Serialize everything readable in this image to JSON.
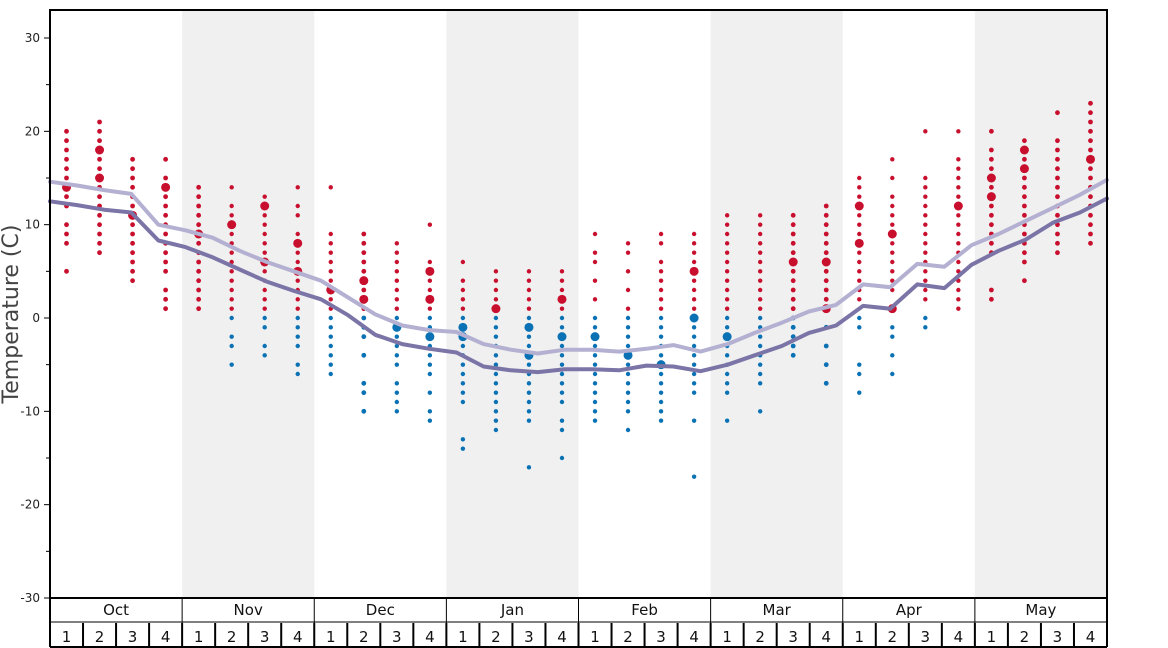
{
  "chart_data": {
    "type": "scatter",
    "ylabel": "Temperature (C)",
    "ylim": [
      -30,
      33
    ],
    "yticks": [
      30,
      20,
      10,
      0,
      -10,
      -20,
      -30
    ],
    "months": [
      "Oct",
      "Nov",
      "Dec",
      "Jan",
      "Feb",
      "Mar",
      "Apr",
      "May"
    ],
    "weeks": [
      "1",
      "2",
      "3",
      "4"
    ],
    "colors": {
      "warm_dots": "#c8102e",
      "cold_dots": "#0a72b4",
      "upper_line": "#b4b0d2",
      "lower_line": "#7b74a6",
      "band_shade": "#f0f0f0",
      "frame": "#000000"
    },
    "series": [
      {
        "name": "",
        "values": [
          14.6,
          14.2,
          13.7,
          13.3,
          10.0,
          9.4,
          8.6,
          7.2,
          6.0,
          5.0,
          4.0,
          2.2,
          0.4,
          -0.8,
          -1.3,
          -1.5,
          -2.8,
          -3.4,
          -3.8,
          -3.4,
          -3.4,
          -3.6,
          -3.3,
          -2.9,
          -3.6,
          -2.8,
          -1.6,
          -0.5,
          0.7,
          1.4,
          3.6,
          3.3,
          5.8,
          5.5,
          7.8,
          9.0,
          10.4,
          11.8,
          13.2,
          14.8
        ]
      },
      {
        "name": "",
        "values": [
          12.5,
          12.1,
          11.6,
          11.3,
          8.3,
          7.6,
          6.5,
          5.2,
          3.9,
          2.9,
          2.0,
          0.3,
          -1.8,
          -2.8,
          -3.3,
          -3.7,
          -5.2,
          -5.6,
          -5.8,
          -5.5,
          -5.5,
          -5.6,
          -5.1,
          -5.2,
          -5.7,
          -5.0,
          -4.0,
          -3.0,
          -1.6,
          -0.8,
          1.3,
          1.0,
          3.6,
          3.2,
          5.7,
          7.2,
          8.4,
          10.2,
          11.3,
          12.8
        ]
      }
    ],
    "dots": [
      {
        "temps": [
          20,
          19,
          18,
          17,
          16,
          15,
          14,
          13,
          12,
          10,
          9,
          8,
          5
        ],
        "big": [
          14
        ]
      },
      {
        "temps": [
          21,
          20,
          19,
          18,
          17,
          16,
          15,
          14,
          13,
          12,
          11,
          10,
          9,
          8,
          7
        ],
        "big": [
          18,
          15
        ]
      },
      {
        "temps": [
          17,
          16,
          15,
          14,
          13,
          12,
          11,
          10,
          9,
          8,
          7,
          6,
          5,
          4
        ],
        "big": [
          11
        ]
      },
      {
        "temps": [
          17,
          15,
          14,
          13,
          12,
          11,
          10,
          9,
          8,
          7,
          6,
          5,
          3,
          2,
          1
        ],
        "big": [
          14
        ]
      },
      {
        "temps": [
          14,
          13,
          12,
          11,
          10,
          9,
          8,
          7,
          6,
          5,
          4,
          3,
          2,
          1
        ],
        "big": [
          9
        ]
      },
      {
        "temps": [
          14,
          12,
          11,
          10,
          9,
          8,
          7,
          6,
          5,
          4,
          3,
          2,
          1,
          0,
          -2,
          -3,
          -5
        ],
        "big": [
          10
        ]
      },
      {
        "temps": [
          13,
          12,
          11,
          10,
          9,
          8,
          7,
          6,
          5,
          4,
          3,
          2,
          1,
          0,
          -1,
          -3,
          -4
        ],
        "big": [
          12,
          6
        ]
      },
      {
        "temps": [
          14,
          12,
          11,
          9,
          8,
          7,
          6,
          5,
          4,
          3,
          2,
          1,
          0,
          -1,
          -2,
          -3,
          -5,
          -6
        ],
        "big": [
          8,
          5
        ]
      },
      {
        "temps": [
          14,
          9,
          8,
          7,
          6,
          5,
          4,
          3,
          2,
          1,
          0,
          -1,
          -2,
          -3,
          -4,
          -5,
          -6
        ],
        "big": [
          3
        ]
      },
      {
        "temps": [
          9,
          8,
          7,
          6,
          5,
          4,
          3,
          2,
          1,
          0,
          -1,
          -2,
          -4,
          -7,
          -8,
          -10
        ],
        "big": [
          4,
          2
        ]
      },
      {
        "temps": [
          8,
          7,
          6,
          5,
          4,
          3,
          2,
          1,
          0,
          -1,
          -2,
          -3,
          -4,
          -5,
          -7,
          -8,
          -9,
          -10
        ],
        "big": [
          -1
        ]
      },
      {
        "temps": [
          10,
          6,
          5,
          4,
          3,
          2,
          1,
          0,
          -1,
          -2,
          -3,
          -4,
          -5,
          -6,
          -8,
          -10,
          -11
        ],
        "big": [
          5,
          2,
          -2
        ]
      },
      {
        "temps": [
          6,
          4,
          3,
          2,
          1,
          0,
          -1,
          -2,
          -3,
          -4,
          -5,
          -6,
          -7,
          -8,
          -9,
          -13,
          -14
        ],
        "big": [
          -1,
          -2
        ]
      },
      {
        "temps": [
          5,
          4,
          3,
          2,
          1,
          0,
          -1,
          -2,
          -3,
          -4,
          -5,
          -6,
          -7,
          -8,
          -9,
          -10,
          -11,
          -12
        ],
        "big": [
          1
        ]
      },
      {
        "temps": [
          5,
          4,
          3,
          2,
          1,
          0,
          -1,
          -2,
          -3,
          -4,
          -5,
          -6,
          -7,
          -8,
          -9,
          -10,
          -11,
          -16
        ],
        "big": [
          -1,
          -4
        ]
      },
      {
        "temps": [
          5,
          4,
          3,
          2,
          1,
          0,
          -1,
          -2,
          -3,
          -4,
          -5,
          -6,
          -7,
          -8,
          -9,
          -11,
          -12,
          -15
        ],
        "big": [
          2,
          -2
        ]
      },
      {
        "temps": [
          9,
          7,
          6,
          4,
          2,
          0,
          -1,
          -2,
          -3,
          -4,
          -5,
          -6,
          -7,
          -8,
          -9,
          -10,
          -11
        ],
        "big": [
          -2
        ]
      },
      {
        "temps": [
          8,
          7,
          5,
          3,
          1,
          0,
          -1,
          -2,
          -3,
          -4,
          -5,
          -6,
          -7,
          -8,
          -9,
          -10,
          -12
        ],
        "big": [
          -4
        ]
      },
      {
        "temps": [
          9,
          8,
          6,
          5,
          4,
          3,
          2,
          1,
          0,
          -1,
          -2,
          -3,
          -4,
          -5,
          -6,
          -7,
          -8,
          -9,
          -10,
          -11
        ],
        "big": [
          -5
        ]
      },
      {
        "temps": [
          9,
          8,
          7,
          6,
          5,
          4,
          3,
          2,
          1,
          0,
          -1,
          -2,
          -3,
          -4,
          -5,
          -6,
          -7,
          -8,
          -11,
          -17
        ],
        "big": [
          5,
          0
        ]
      },
      {
        "temps": [
          11,
          10,
          9,
          8,
          7,
          6,
          5,
          4,
          3,
          2,
          1,
          0,
          -1,
          -2,
          -3,
          -4,
          -5,
          -6,
          -7,
          -8,
          -11
        ],
        "big": [
          -2
        ]
      },
      {
        "temps": [
          11,
          10,
          9,
          8,
          7,
          6,
          5,
          4,
          3,
          2,
          1,
          0,
          -1,
          -2,
          -3,
          -4,
          -5,
          -6,
          -7,
          -10
        ],
        "big": []
      },
      {
        "temps": [
          11,
          10,
          9,
          8,
          7,
          6,
          5,
          4,
          3,
          2,
          1,
          0,
          -1,
          -2,
          -3,
          -4
        ],
        "big": [
          6
        ]
      },
      {
        "temps": [
          12,
          11,
          10,
          9,
          8,
          7,
          6,
          5,
          4,
          3,
          2,
          1,
          -1,
          -3,
          -5,
          -7
        ],
        "big": [
          6,
          1
        ]
      },
      {
        "temps": [
          15,
          14,
          13,
          12,
          11,
          10,
          9,
          8,
          7,
          6,
          5,
          4,
          3,
          2,
          0,
          -1,
          -5,
          -6,
          -8
        ],
        "big": [
          12,
          8
        ]
      },
      {
        "temps": [
          17,
          15,
          13,
          12,
          11,
          10,
          9,
          8,
          7,
          6,
          5,
          4,
          3,
          1,
          -1,
          -2,
          -4,
          -6
        ],
        "big": [
          9,
          1
        ]
      },
      {
        "temps": [
          20,
          15,
          14,
          13,
          12,
          11,
          10,
          9,
          8,
          7,
          6,
          5,
          4,
          3,
          2,
          0,
          -1
        ],
        "big": []
      },
      {
        "temps": [
          20,
          17,
          16,
          15,
          14,
          13,
          12,
          11,
          10,
          9,
          8,
          7,
          6,
          5,
          4,
          3,
          2,
          1
        ],
        "big": [
          12
        ]
      },
      {
        "temps": [
          20,
          18,
          17,
          16,
          15,
          14,
          13,
          12,
          11,
          10,
          9,
          8,
          7,
          3,
          2
        ],
        "big": [
          15,
          13
        ]
      },
      {
        "temps": [
          19,
          18,
          17,
          16,
          15,
          14,
          13,
          12,
          11,
          10,
          9,
          8,
          7,
          6,
          4
        ],
        "big": [
          18,
          16
        ]
      },
      {
        "temps": [
          22,
          19,
          18,
          17,
          16,
          15,
          14,
          13,
          12,
          11,
          10,
          9,
          8,
          7
        ],
        "big": []
      },
      {
        "temps": [
          23,
          22,
          21,
          20,
          19,
          18,
          17,
          16,
          15,
          14,
          13,
          12,
          11,
          10,
          9,
          8
        ],
        "big": [
          17
        ]
      }
    ]
  }
}
